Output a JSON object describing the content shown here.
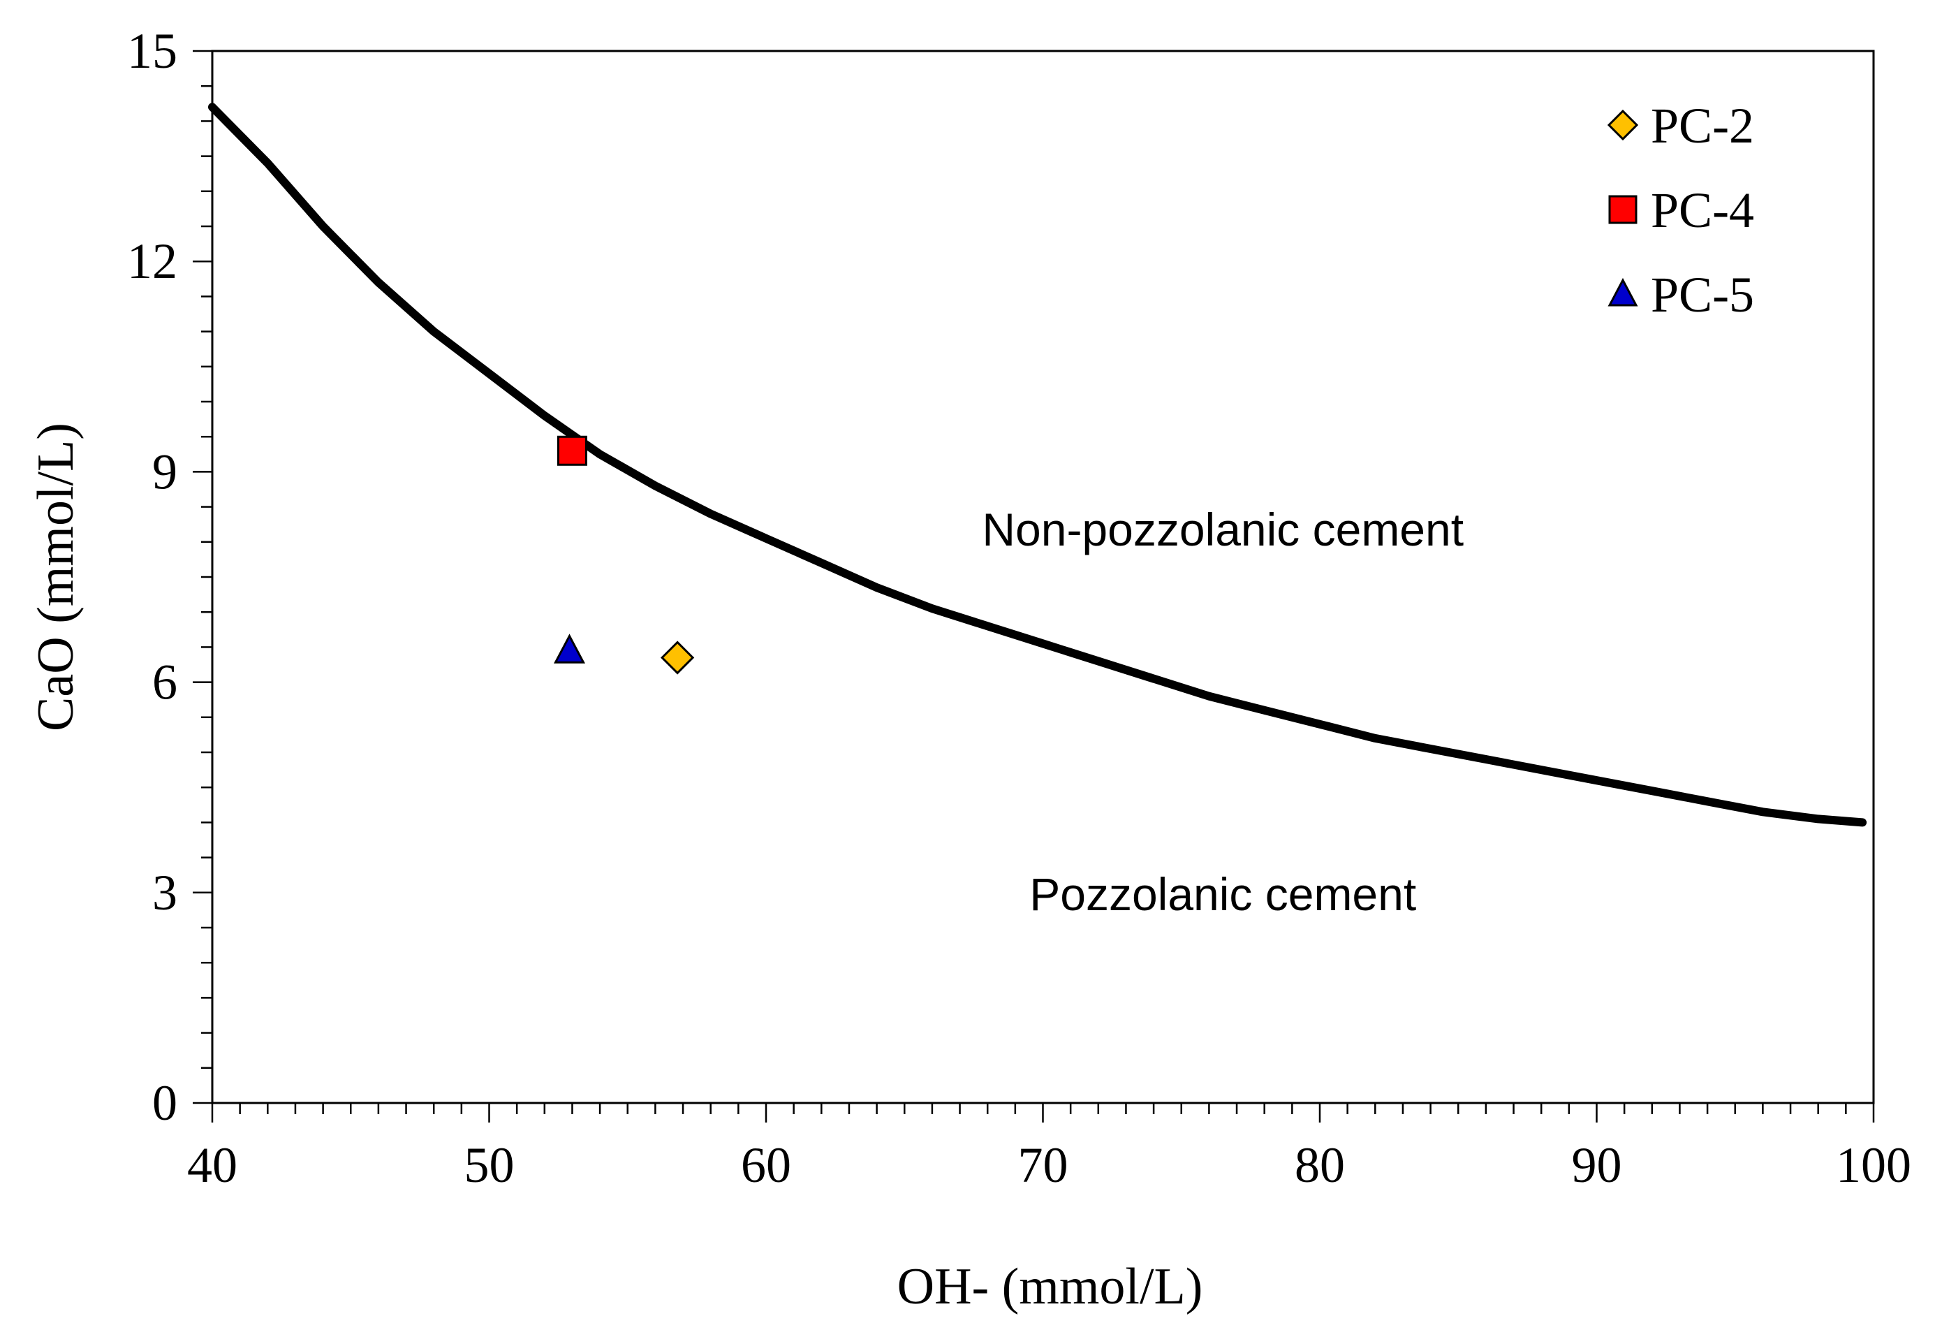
{
  "chart_data": {
    "type": "scatter",
    "title": "",
    "xlabel": "OH- (mmol/L)",
    "ylabel": "CaO (mmol/L)",
    "xlim": [
      40,
      100
    ],
    "ylim": [
      0,
      15
    ],
    "x_ticks": [
      40,
      50,
      60,
      70,
      80,
      90,
      100
    ],
    "y_ticks": [
      0,
      3,
      6,
      9,
      12,
      15
    ],
    "x_tick_labels": [
      "40",
      "50",
      "60",
      "70",
      "80",
      "90",
      "100"
    ],
    "y_tick_labels": [
      "0",
      "3",
      "6",
      "9",
      "12",
      "15"
    ],
    "x_minor_step": 1,
    "y_minor_step": 0.5,
    "grid": false,
    "legend_position": "top-right",
    "series": [
      {
        "name": "boundary",
        "kind": "line",
        "color": "#000000",
        "x": [
          40,
          42,
          44,
          46,
          48,
          50,
          52,
          54,
          56,
          58,
          60,
          62,
          64,
          66,
          68,
          70,
          72,
          74,
          76,
          78,
          80,
          82,
          84,
          86,
          88,
          90,
          92,
          94,
          96,
          98,
          99.6
        ],
        "y": [
          14.2,
          13.4,
          12.5,
          11.7,
          11.0,
          10.4,
          9.8,
          9.25,
          8.8,
          8.4,
          8.05,
          7.7,
          7.35,
          7.05,
          6.8,
          6.55,
          6.3,
          6.05,
          5.8,
          5.6,
          5.4,
          5.2,
          5.05,
          4.9,
          4.75,
          4.6,
          4.45,
          4.3,
          4.15,
          4.05,
          4.0
        ]
      },
      {
        "name": "PC-2",
        "kind": "point",
        "marker": "diamond",
        "color": "#ffc000",
        "x": 56.8,
        "y": 6.35
      },
      {
        "name": "PC-4",
        "kind": "point",
        "marker": "square",
        "color": "#ff0000",
        "x": 53.0,
        "y": 9.3
      },
      {
        "name": "PC-5",
        "kind": "point",
        "marker": "triangle",
        "color": "#0000cc",
        "x": 52.9,
        "y": 6.45
      }
    ],
    "legend": [
      {
        "label": "PC-2",
        "marker": "diamond",
        "color": "#ffc000"
      },
      {
        "label": "PC-4",
        "marker": "square",
        "color": "#ff0000"
      },
      {
        "label": "PC-5",
        "marker": "triangle",
        "color": "#0000cc"
      }
    ],
    "annotations": [
      {
        "text": "Non-pozzolanic cement",
        "x": 76.5,
        "y": 7.95
      },
      {
        "text": "Pozzolanic cement",
        "x": 76.5,
        "y": 2.75
      }
    ]
  }
}
